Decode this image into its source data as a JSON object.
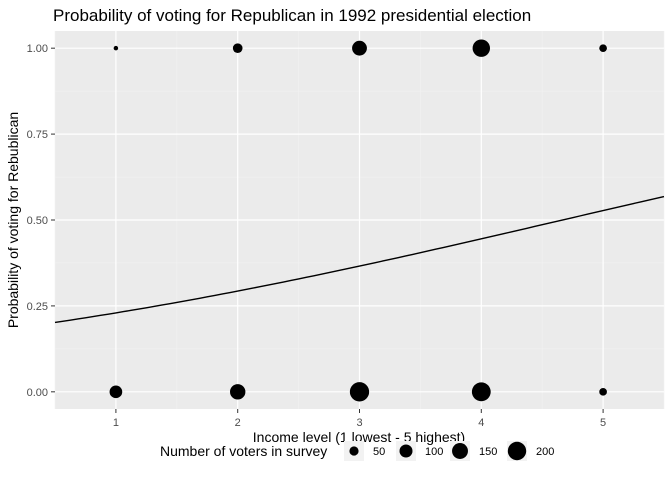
{
  "chart_data": {
    "type": "scatter",
    "title": "Probability of voting for Republican in 1992 presidential election",
    "xlabel": "Income level (1 lowest - 5 highest)",
    "ylabel": "Probability of voting for Rebublican",
    "xlim": [
      0.5,
      5.5
    ],
    "ylim": [
      -0.05,
      1.05
    ],
    "x_ticks": [
      1,
      2,
      3,
      4,
      5
    ],
    "y_ticks": [
      0.0,
      0.25,
      0.5,
      0.75,
      1.0
    ],
    "x_tick_labels": [
      "1",
      "2",
      "3",
      "4",
      "5"
    ],
    "y_tick_labels": [
      "0.00",
      "0.25",
      "0.50",
      "0.75",
      "1.00"
    ],
    "grid": true,
    "points": [
      {
        "x": 1,
        "y": 1,
        "n": 12
      },
      {
        "x": 2,
        "y": 1,
        "n": 55
      },
      {
        "x": 3,
        "y": 1,
        "n": 130
      },
      {
        "x": 4,
        "y": 1,
        "n": 180
      },
      {
        "x": 5,
        "y": 1,
        "n": 35
      },
      {
        "x": 1,
        "y": 0,
        "n": 95
      },
      {
        "x": 2,
        "y": 0,
        "n": 140
      },
      {
        "x": 3,
        "y": 0,
        "n": 220
      },
      {
        "x": 4,
        "y": 0,
        "n": 210
      },
      {
        "x": 5,
        "y": 0,
        "n": 35
      }
    ],
    "fit_line": {
      "type": "logistic",
      "intercept": -1.54,
      "slope": 0.33,
      "x_range": [
        0.5,
        5.5
      ]
    },
    "legend": {
      "title": "Number of voters in survey",
      "position": "bottom",
      "entries": [
        {
          "label": "50",
          "value": 50
        },
        {
          "label": "100",
          "value": 100
        },
        {
          "label": "150",
          "value": 150
        },
        {
          "label": "200",
          "value": 200
        }
      ]
    }
  }
}
